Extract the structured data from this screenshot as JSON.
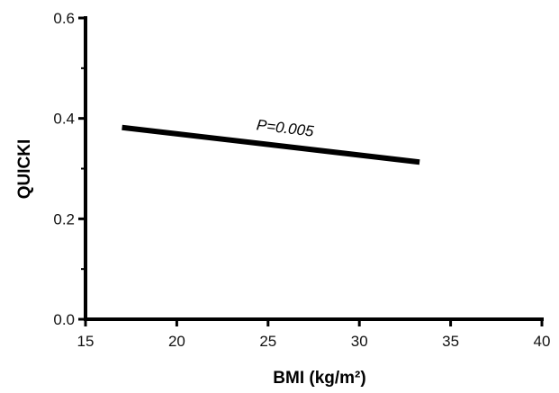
{
  "chart_data": {
    "type": "line",
    "xlabel": "BMI (kg/m²)",
    "ylabel": "QUICKI",
    "xlim": [
      15,
      40
    ],
    "ylim": [
      0.0,
      0.6
    ],
    "x_ticks": [
      "15",
      "20",
      "25",
      "30",
      "35",
      "40"
    ],
    "y_ticks": [
      "0.0",
      "0.2",
      "0.4",
      "0.6"
    ],
    "grid": false,
    "series": [
      {
        "x": [
          17.0,
          33.3
        ],
        "y": [
          0.382,
          0.313
        ]
      }
    ],
    "annotation": {
      "text": "P=0.005",
      "x": 25.9,
      "y": 0.36
    },
    "colors": {
      "line": "#000000",
      "axis": "#000000"
    }
  }
}
